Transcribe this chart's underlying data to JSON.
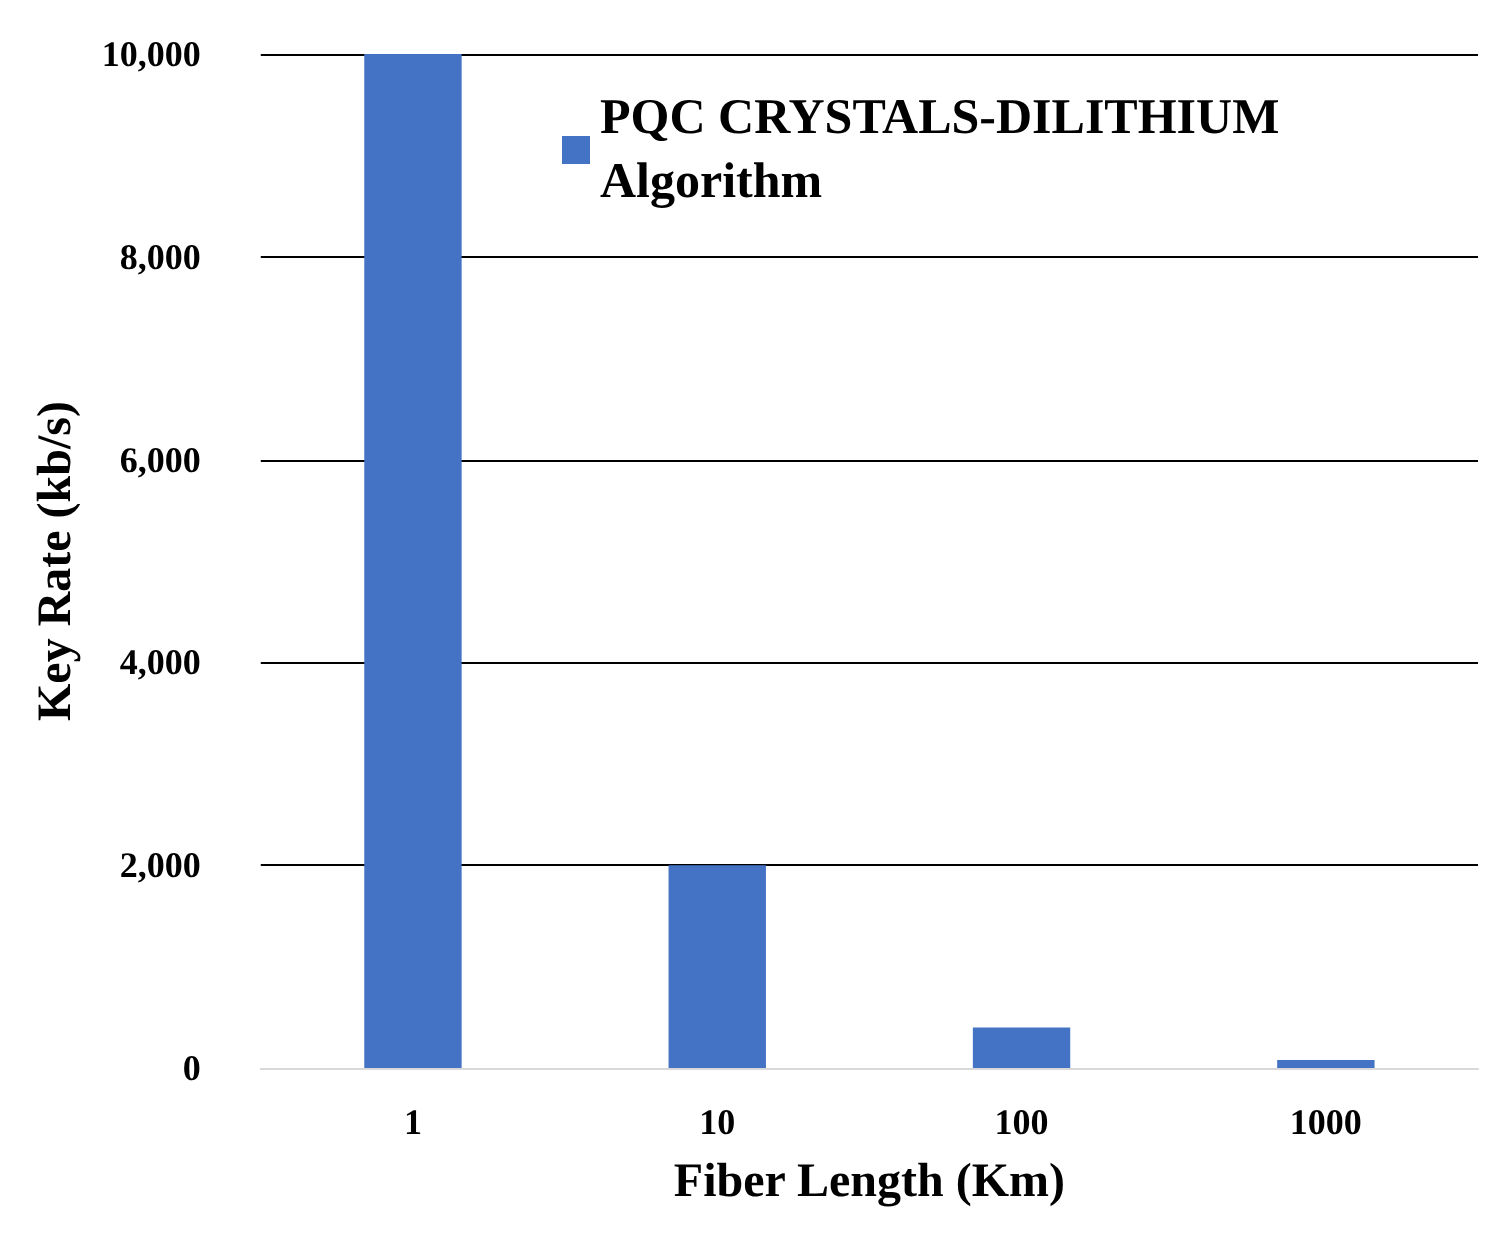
{
  "chart_data": {
    "type": "bar",
    "xlabel": "Fiber Length (Km)",
    "ylabel": "Key Rate (kb/s)",
    "categories": [
      "1",
      "10",
      "100",
      "1000"
    ],
    "series": [
      {
        "name": "PQC CRYSTALS-DILITHIUM Algorithm",
        "color": "#4472c4",
        "values": [
          10000,
          2000,
          400,
          80
        ]
      }
    ],
    "ylim": [
      0,
      10000
    ],
    "yticks": [
      {
        "value": 0,
        "label": "0"
      },
      {
        "value": 2000,
        "label": "2,000"
      },
      {
        "value": 4000,
        "label": "4,000"
      },
      {
        "value": 6000,
        "label": "6,000"
      },
      {
        "value": 8000,
        "label": "8,000"
      },
      {
        "value": 10000,
        "label": "10,000"
      }
    ],
    "grid": "y",
    "legend": "top right"
  }
}
